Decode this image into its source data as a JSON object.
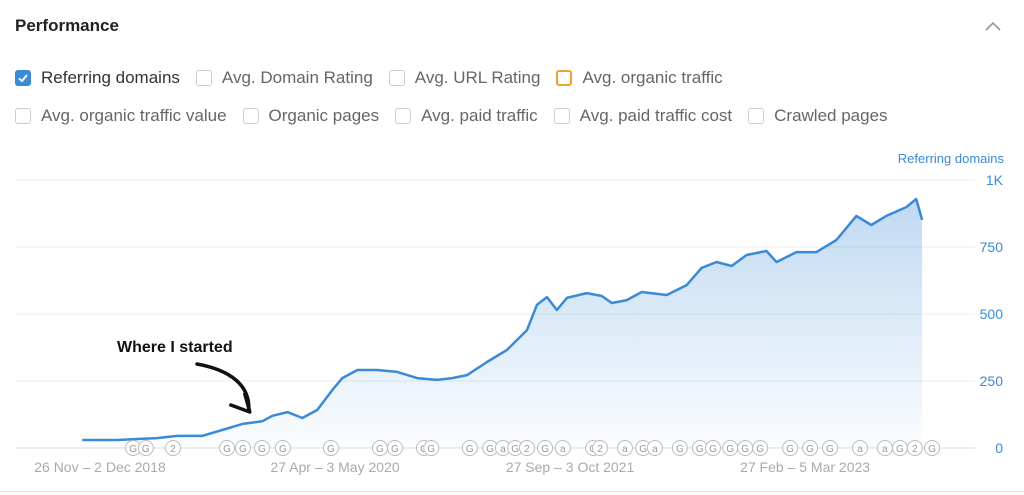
{
  "header": {
    "title": "Performance",
    "collapse_icon": "chevron-up-icon"
  },
  "checkboxes": [
    {
      "label": "Referring domains",
      "checked": true,
      "color": "#3a8ad6"
    },
    {
      "label": "Avg. Domain Rating",
      "checked": false
    },
    {
      "label": "Avg. URL Rating",
      "checked": false
    },
    {
      "label": "Avg. organic traffic",
      "checked": false,
      "color": "#f0a030"
    },
    {
      "label": "Avg. organic traffic value",
      "checked": false
    },
    {
      "label": "Organic pages",
      "checked": false
    },
    {
      "label": "Avg. paid traffic",
      "checked": false
    },
    {
      "label": "Avg. paid traffic cost",
      "checked": false
    },
    {
      "label": "Crawled pages",
      "checked": false
    }
  ],
  "chart_data": {
    "type": "area",
    "legend": "Referring domains",
    "legend_position": "top-right",
    "grid": true,
    "y_axis_side": "right",
    "ylim": [
      0,
      1000
    ],
    "y_ticks": [
      {
        "value": 0,
        "label": "0"
      },
      {
        "value": 250,
        "label": "250"
      },
      {
        "value": 500,
        "label": "500"
      },
      {
        "value": 750,
        "label": "750"
      },
      {
        "value": 1000,
        "label": "1K"
      }
    ],
    "x_ticks": [
      {
        "date": "2018-11-26",
        "label": "26 Nov – 2 Dec 2018"
      },
      {
        "date": "2020-04-27",
        "label": "27 Apr – 3 May 2020"
      },
      {
        "date": "2021-09-27",
        "label": "27 Sep – 3 Oct 2021"
      },
      {
        "date": "2023-02-27",
        "label": "27 Feb – 5 Mar 2023"
      }
    ],
    "color": "#3a8ad6",
    "series": [
      {
        "name": "Referring domains",
        "points": [
          [
            "2018-10-18",
            30
          ],
          [
            "2019-01-02",
            30
          ],
          [
            "2019-03-31",
            37
          ],
          [
            "2019-05-15",
            45
          ],
          [
            "2019-07-09",
            45
          ],
          [
            "2019-08-22",
            67
          ],
          [
            "2019-10-06",
            90
          ],
          [
            "2019-11-19",
            100
          ],
          [
            "2019-12-11",
            120
          ],
          [
            "2020-01-13",
            134
          ],
          [
            "2020-02-15",
            112
          ],
          [
            "2020-03-19",
            142
          ],
          [
            "2020-04-21",
            216
          ],
          [
            "2020-05-13",
            261
          ],
          [
            "2020-06-15",
            291
          ],
          [
            "2020-07-29",
            291
          ],
          [
            "2020-09-11",
            284
          ],
          [
            "2020-10-25",
            261
          ],
          [
            "2020-12-08",
            254
          ],
          [
            "2021-01-10",
            261
          ],
          [
            "2021-02-12",
            272
          ],
          [
            "2021-03-28",
            321
          ],
          [
            "2021-05-11",
            366
          ],
          [
            "2021-06-24",
            440
          ],
          [
            "2021-07-16",
            534
          ],
          [
            "2021-08-07",
            563
          ],
          [
            "2021-08-29",
            515
          ],
          [
            "2021-09-20",
            560
          ],
          [
            "2021-11-03",
            578
          ],
          [
            "2021-12-06",
            567
          ],
          [
            "2021-12-28",
            541
          ],
          [
            "2022-01-30",
            552
          ],
          [
            "2022-03-04",
            582
          ],
          [
            "2022-04-28",
            571
          ],
          [
            "2022-06-11",
            608
          ],
          [
            "2022-07-14",
            672
          ],
          [
            "2022-08-16",
            694
          ],
          [
            "2022-09-18",
            679
          ],
          [
            "2022-10-21",
            720
          ],
          [
            "2022-12-04",
            735
          ],
          [
            "2022-12-26",
            694
          ],
          [
            "2023-02-08",
            731
          ],
          [
            "2023-03-24",
            731
          ],
          [
            "2023-05-07",
            776
          ],
          [
            "2023-06-20",
            866
          ],
          [
            "2023-07-23",
            832
          ],
          [
            "2023-08-25",
            866
          ],
          [
            "2023-10-08",
            899
          ],
          [
            "2023-10-30",
            929
          ],
          [
            "2023-11-12",
            851
          ]
        ]
      }
    ],
    "annotations": [
      {
        "text": "Where I started",
        "arrow_to_date": "2019-10-20"
      }
    ],
    "event_markers": [
      [
        "2019-02-07",
        "G"
      ],
      [
        "2019-03-07",
        "G"
      ],
      [
        "2019-05-06",
        "2"
      ],
      [
        "2019-09-02",
        "G"
      ],
      [
        "2019-10-07",
        "G"
      ],
      [
        "2019-11-18",
        "G"
      ],
      [
        "2020-01-03",
        "G"
      ],
      [
        "2020-04-18",
        "G"
      ],
      [
        "2020-08-04",
        "G"
      ],
      [
        "2020-09-06",
        "G"
      ],
      [
        "2020-11-09",
        "G"
      ],
      [
        "2020-11-25",
        "G"
      ],
      [
        "2021-02-18",
        "G"
      ],
      [
        "2021-04-04",
        "G"
      ],
      [
        "2021-05-02",
        "a"
      ],
      [
        "2021-05-29",
        "G"
      ],
      [
        "2021-06-24",
        "2"
      ],
      [
        "2021-08-03",
        "G"
      ],
      [
        "2021-09-11",
        "a"
      ],
      [
        "2021-11-17",
        "G"
      ],
      [
        "2021-12-02",
        "2"
      ],
      [
        "2022-01-26",
        "a"
      ],
      [
        "2022-03-07",
        "G"
      ],
      [
        "2022-04-02",
        "a"
      ],
      [
        "2022-05-27",
        "G"
      ],
      [
        "2022-07-10",
        "G"
      ],
      [
        "2022-08-08",
        "G"
      ],
      [
        "2022-09-15",
        "G"
      ],
      [
        "2022-10-18",
        "G"
      ],
      [
        "2022-11-20",
        "G"
      ],
      [
        "2023-01-25",
        "G"
      ],
      [
        "2023-03-10",
        "G"
      ],
      [
        "2023-04-23",
        "G"
      ],
      [
        "2023-06-28",
        "a"
      ],
      [
        "2023-08-22",
        "a"
      ],
      [
        "2023-09-24",
        "G"
      ],
      [
        "2023-10-27",
        "2"
      ],
      [
        "2023-12-04",
        "G"
      ]
    ]
  }
}
